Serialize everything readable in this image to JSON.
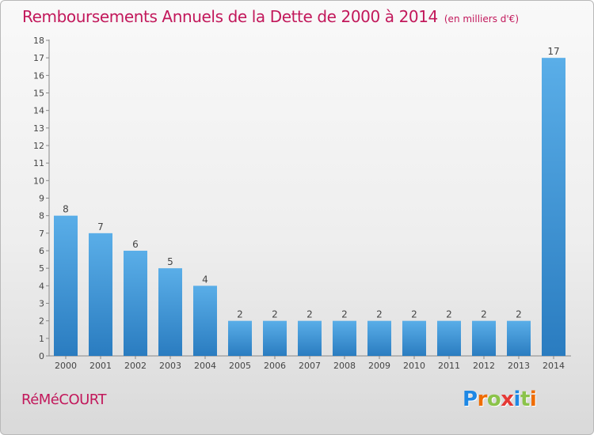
{
  "title": "Remboursements Annuels de la Dette de 2000 à 2014",
  "subtitle": "(en milliers d'€)",
  "commune": "RéMéCOURT",
  "logo": {
    "text": "Proxiti",
    "letter_colors": [
      "#1e88e5",
      "#ef6c00",
      "#8bc34a",
      "#e53935",
      "#1e88e5",
      "#8bc34a",
      "#ef6c00"
    ]
  },
  "colors": {
    "accent": "#c2185b",
    "bar_light": "#5aaee8",
    "bar_dark": "#2a7cc0"
  },
  "chart_data": {
    "type": "bar",
    "categories": [
      "2000",
      "2001",
      "2002",
      "2003",
      "2004",
      "2005",
      "2006",
      "2007",
      "2008",
      "2009",
      "2010",
      "2011",
      "2012",
      "2013",
      "2014"
    ],
    "values": [
      8,
      7,
      6,
      5,
      4,
      2,
      2,
      2,
      2,
      2,
      2,
      2,
      2,
      2,
      17
    ],
    "data_labels": [
      "8",
      "7",
      "6",
      "5",
      "4",
      "2",
      "2",
      "2",
      "2",
      "2",
      "2",
      "2",
      "2",
      "2",
      "17"
    ],
    "yticks": [
      "0",
      "1",
      "2",
      "3",
      "4",
      "5",
      "6",
      "7",
      "8",
      "9",
      "10",
      "11",
      "12",
      "13",
      "14",
      "15",
      "16",
      "17",
      "18"
    ],
    "ylim": [
      0,
      18
    ],
    "grid": false,
    "legend": "none"
  }
}
